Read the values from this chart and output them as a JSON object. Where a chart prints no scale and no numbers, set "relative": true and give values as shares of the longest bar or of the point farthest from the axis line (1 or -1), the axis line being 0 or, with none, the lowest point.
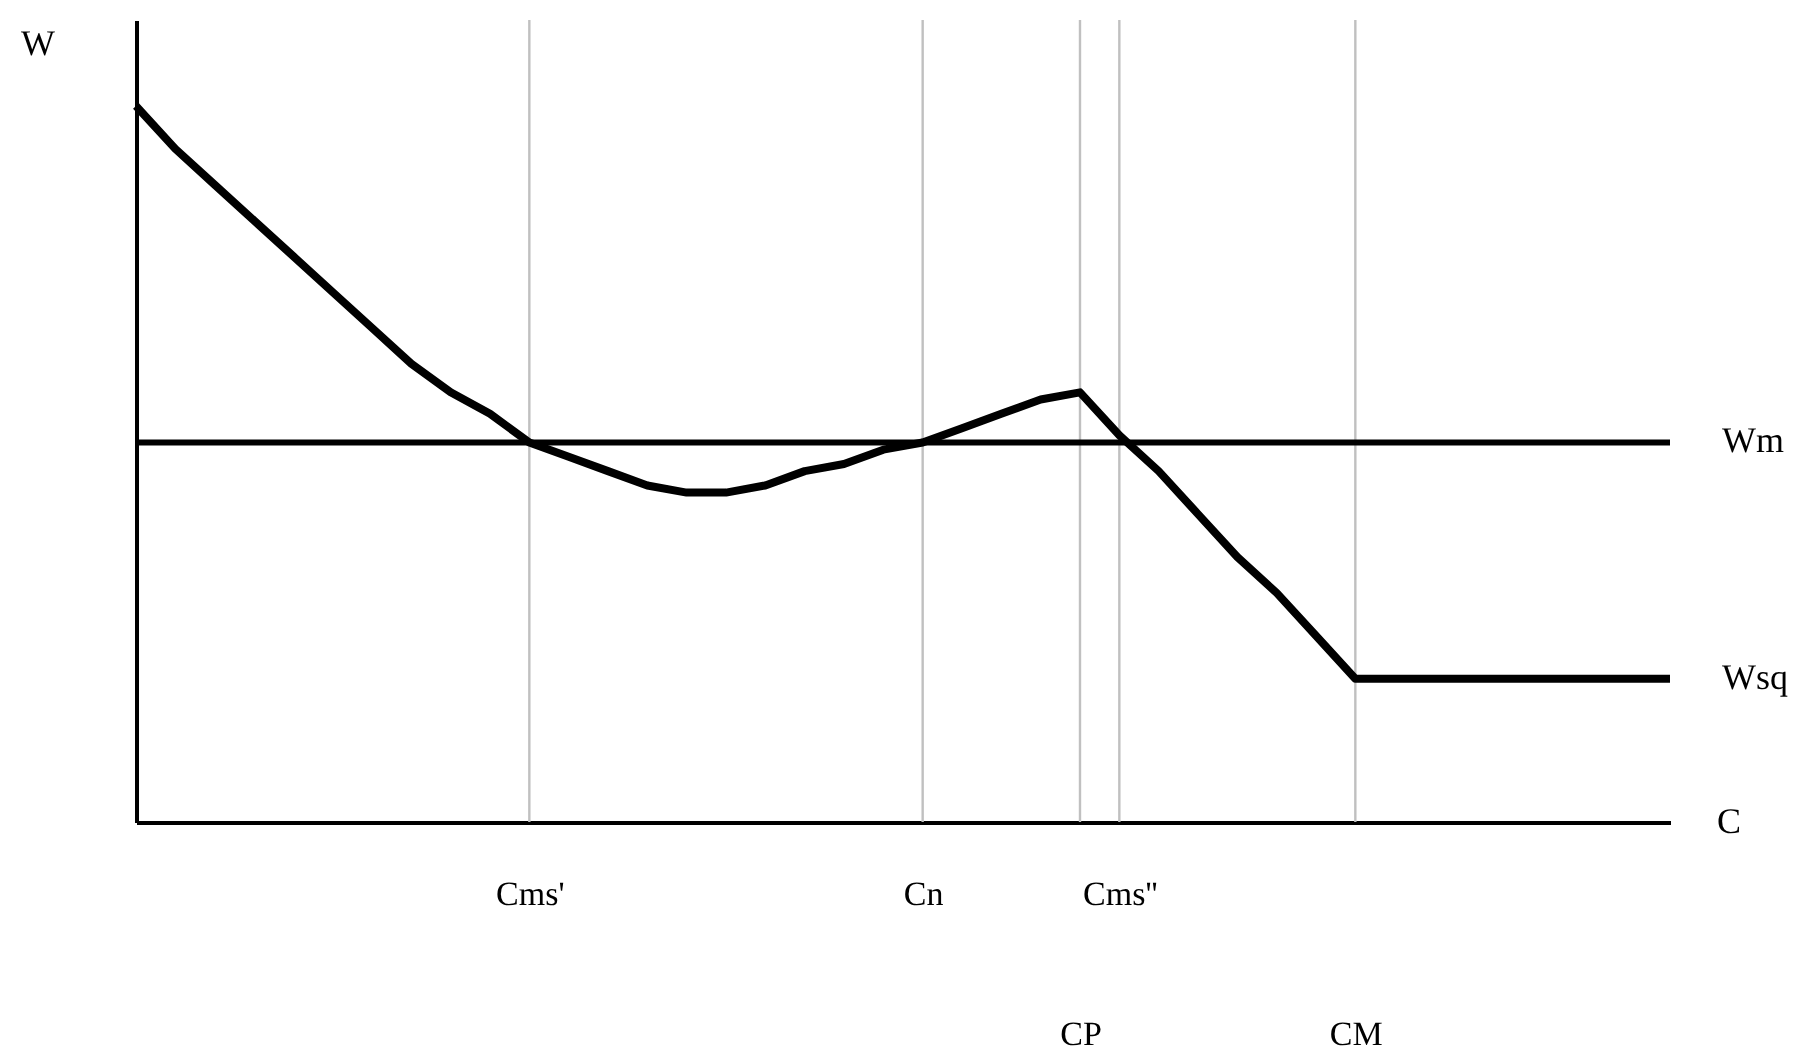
{
  "chart_data": {
    "type": "line",
    "relative": true,
    "xlabel": "C",
    "ylabel": "W",
    "categories": [
      null,
      null,
      null,
      null,
      null,
      null,
      null,
      null,
      null,
      null,
      "Cms'",
      null,
      null,
      null,
      null,
      null,
      null,
      null,
      null,
      null,
      "Cn",
      null,
      null,
      null,
      "CP",
      "Cms''",
      null,
      null,
      null,
      null,
      null,
      "CM",
      null,
      null,
      null,
      null,
      null,
      null,
      null,
      null
    ],
    "series": [
      {
        "name": "Wsq",
        "color": "#000000",
        "values": [
          1.0,
          0.94,
          0.89,
          0.84,
          0.79,
          0.74,
          0.69,
          0.64,
          0.6,
          0.57,
          0.53,
          0.51,
          0.49,
          0.47,
          0.46,
          0.46,
          0.47,
          0.49,
          0.5,
          0.52,
          0.53,
          0.55,
          0.57,
          0.59,
          0.6,
          0.54,
          0.49,
          0.43,
          0.37,
          0.32,
          0.26,
          0.2,
          0.2,
          0.2,
          0.2,
          0.2,
          0.2,
          0.2,
          0.2,
          0.2
        ]
      }
    ],
    "ref_lines": [
      {
        "axis": "y",
        "value": 0.53,
        "label": "Wm",
        "color": "#000000"
      },
      {
        "axis": "x",
        "value": "Cms'",
        "color": "#c0c0c0"
      },
      {
        "axis": "x",
        "value": "Cn",
        "color": "#c0c0c0"
      },
      {
        "axis": "x",
        "value": "CP",
        "color": "#c0c0c0"
      },
      {
        "axis": "x",
        "value": "Cms''",
        "color": "#c0c0c0"
      },
      {
        "axis": "x",
        "value": "CM",
        "color": "#c0c0c0"
      }
    ],
    "grid": false
  }
}
